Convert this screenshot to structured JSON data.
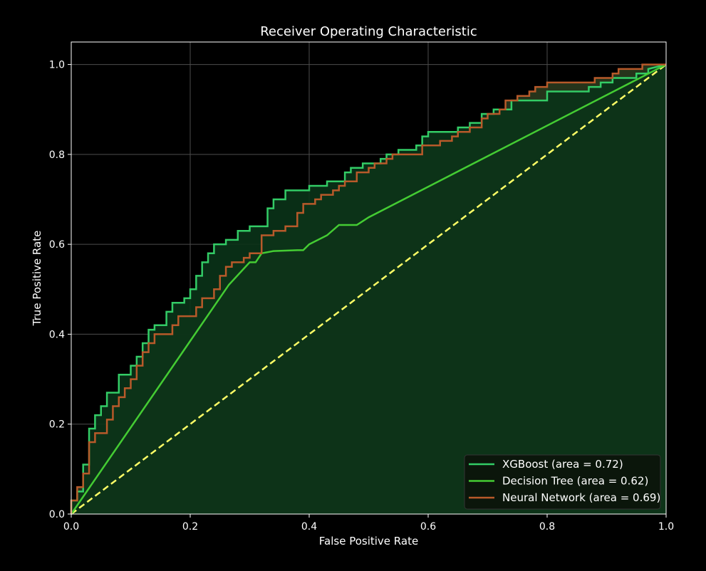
{
  "chart_data": {
    "type": "line",
    "title": "Receiver Operating Characteristic",
    "xlabel": "False Positive Rate",
    "ylabel": "True Positive Rate",
    "xlim": [
      0.0,
      1.0
    ],
    "ylim": [
      0.0,
      1.05
    ],
    "xticks": [
      "0.0",
      "0.2",
      "0.4",
      "0.6",
      "0.8",
      "1.0"
    ],
    "yticks": [
      "0.0",
      "0.2",
      "0.4",
      "0.6",
      "0.8",
      "1.0"
    ],
    "grid": true,
    "legend_position": "lower-right",
    "series": [
      {
        "name": "XGBoost (area = 0.72)",
        "color": "#33cc66",
        "fill": "#0a3318",
        "step": true,
        "points": [
          [
            0.0,
            0.0
          ],
          [
            0.0,
            0.03
          ],
          [
            0.01,
            0.03
          ],
          [
            0.01,
            0.05
          ],
          [
            0.02,
            0.05
          ],
          [
            0.02,
            0.11
          ],
          [
            0.03,
            0.11
          ],
          [
            0.03,
            0.19
          ],
          [
            0.04,
            0.19
          ],
          [
            0.04,
            0.22
          ],
          [
            0.05,
            0.22
          ],
          [
            0.05,
            0.24
          ],
          [
            0.06,
            0.24
          ],
          [
            0.06,
            0.27
          ],
          [
            0.08,
            0.27
          ],
          [
            0.08,
            0.31
          ],
          [
            0.1,
            0.31
          ],
          [
            0.1,
            0.33
          ],
          [
            0.11,
            0.33
          ],
          [
            0.11,
            0.35
          ],
          [
            0.12,
            0.35
          ],
          [
            0.12,
            0.38
          ],
          [
            0.13,
            0.38
          ],
          [
            0.13,
            0.41
          ],
          [
            0.14,
            0.41
          ],
          [
            0.14,
            0.42
          ],
          [
            0.16,
            0.42
          ],
          [
            0.16,
            0.45
          ],
          [
            0.17,
            0.45
          ],
          [
            0.17,
            0.47
          ],
          [
            0.19,
            0.47
          ],
          [
            0.19,
            0.48
          ],
          [
            0.2,
            0.48
          ],
          [
            0.2,
            0.5
          ],
          [
            0.21,
            0.5
          ],
          [
            0.21,
            0.53
          ],
          [
            0.22,
            0.53
          ],
          [
            0.22,
            0.56
          ],
          [
            0.23,
            0.56
          ],
          [
            0.23,
            0.58
          ],
          [
            0.24,
            0.58
          ],
          [
            0.24,
            0.6
          ],
          [
            0.26,
            0.6
          ],
          [
            0.26,
            0.61
          ],
          [
            0.28,
            0.61
          ],
          [
            0.28,
            0.63
          ],
          [
            0.3,
            0.63
          ],
          [
            0.3,
            0.64
          ],
          [
            0.33,
            0.64
          ],
          [
            0.33,
            0.68
          ],
          [
            0.34,
            0.68
          ],
          [
            0.34,
            0.7
          ],
          [
            0.36,
            0.7
          ],
          [
            0.36,
            0.72
          ],
          [
            0.4,
            0.72
          ],
          [
            0.4,
            0.73
          ],
          [
            0.43,
            0.73
          ],
          [
            0.43,
            0.74
          ],
          [
            0.46,
            0.74
          ],
          [
            0.46,
            0.76
          ],
          [
            0.47,
            0.76
          ],
          [
            0.47,
            0.77
          ],
          [
            0.49,
            0.77
          ],
          [
            0.49,
            0.78
          ],
          [
            0.52,
            0.78
          ],
          [
            0.52,
            0.79
          ],
          [
            0.53,
            0.79
          ],
          [
            0.53,
            0.8
          ],
          [
            0.55,
            0.8
          ],
          [
            0.55,
            0.81
          ],
          [
            0.58,
            0.81
          ],
          [
            0.58,
            0.82
          ],
          [
            0.59,
            0.82
          ],
          [
            0.59,
            0.84
          ],
          [
            0.6,
            0.84
          ],
          [
            0.6,
            0.85
          ],
          [
            0.65,
            0.85
          ],
          [
            0.65,
            0.86
          ],
          [
            0.67,
            0.86
          ],
          [
            0.67,
            0.87
          ],
          [
            0.69,
            0.87
          ],
          [
            0.69,
            0.89
          ],
          [
            0.71,
            0.89
          ],
          [
            0.71,
            0.9
          ],
          [
            0.74,
            0.9
          ],
          [
            0.74,
            0.92
          ],
          [
            0.8,
            0.92
          ],
          [
            0.8,
            0.94
          ],
          [
            0.87,
            0.94
          ],
          [
            0.87,
            0.95
          ],
          [
            0.89,
            0.95
          ],
          [
            0.89,
            0.96
          ],
          [
            0.91,
            0.96
          ],
          [
            0.91,
            0.97
          ],
          [
            0.95,
            0.97
          ],
          [
            0.95,
            0.98
          ],
          [
            0.97,
            0.98
          ],
          [
            0.97,
            0.99
          ],
          [
            1.0,
            1.0
          ]
        ]
      },
      {
        "name": "Decision Tree (area = 0.62)",
        "color": "#44cc33",
        "fill": "#2e4d1c",
        "step": false,
        "points": [
          [
            0.0,
            0.0
          ],
          [
            0.265,
            0.51
          ],
          [
            0.3,
            0.56
          ],
          [
            0.31,
            0.56
          ],
          [
            0.32,
            0.58
          ],
          [
            0.34,
            0.585
          ],
          [
            0.38,
            0.587
          ],
          [
            0.39,
            0.587
          ],
          [
            0.4,
            0.6
          ],
          [
            0.43,
            0.62
          ],
          [
            0.45,
            0.643
          ],
          [
            0.48,
            0.643
          ],
          [
            0.5,
            0.66
          ],
          [
            1.0,
            1.0
          ]
        ]
      },
      {
        "name": "Neural Network (area = 0.69)",
        "color": "#b85a2a",
        "fill": "#2a3a1e",
        "step": true,
        "points": [
          [
            0.0,
            0.0
          ],
          [
            0.0,
            0.03
          ],
          [
            0.01,
            0.03
          ],
          [
            0.01,
            0.06
          ],
          [
            0.02,
            0.06
          ],
          [
            0.02,
            0.09
          ],
          [
            0.03,
            0.09
          ],
          [
            0.03,
            0.16
          ],
          [
            0.04,
            0.16
          ],
          [
            0.04,
            0.18
          ],
          [
            0.06,
            0.18
          ],
          [
            0.06,
            0.21
          ],
          [
            0.07,
            0.21
          ],
          [
            0.07,
            0.24
          ],
          [
            0.08,
            0.24
          ],
          [
            0.08,
            0.26
          ],
          [
            0.09,
            0.26
          ],
          [
            0.09,
            0.28
          ],
          [
            0.1,
            0.28
          ],
          [
            0.1,
            0.3
          ],
          [
            0.11,
            0.3
          ],
          [
            0.11,
            0.33
          ],
          [
            0.12,
            0.33
          ],
          [
            0.12,
            0.36
          ],
          [
            0.13,
            0.36
          ],
          [
            0.13,
            0.38
          ],
          [
            0.14,
            0.38
          ],
          [
            0.14,
            0.4
          ],
          [
            0.17,
            0.4
          ],
          [
            0.17,
            0.42
          ],
          [
            0.18,
            0.42
          ],
          [
            0.18,
            0.44
          ],
          [
            0.21,
            0.44
          ],
          [
            0.21,
            0.46
          ],
          [
            0.22,
            0.46
          ],
          [
            0.22,
            0.48
          ],
          [
            0.24,
            0.48
          ],
          [
            0.24,
            0.5
          ],
          [
            0.25,
            0.5
          ],
          [
            0.25,
            0.53
          ],
          [
            0.26,
            0.53
          ],
          [
            0.26,
            0.55
          ],
          [
            0.27,
            0.55
          ],
          [
            0.27,
            0.56
          ],
          [
            0.29,
            0.56
          ],
          [
            0.29,
            0.57
          ],
          [
            0.3,
            0.57
          ],
          [
            0.3,
            0.58
          ],
          [
            0.32,
            0.58
          ],
          [
            0.32,
            0.62
          ],
          [
            0.34,
            0.62
          ],
          [
            0.34,
            0.63
          ],
          [
            0.36,
            0.63
          ],
          [
            0.36,
            0.64
          ],
          [
            0.38,
            0.64
          ],
          [
            0.38,
            0.67
          ],
          [
            0.39,
            0.67
          ],
          [
            0.39,
            0.69
          ],
          [
            0.41,
            0.69
          ],
          [
            0.41,
            0.7
          ],
          [
            0.42,
            0.7
          ],
          [
            0.42,
            0.71
          ],
          [
            0.44,
            0.71
          ],
          [
            0.44,
            0.72
          ],
          [
            0.45,
            0.72
          ],
          [
            0.45,
            0.73
          ],
          [
            0.46,
            0.73
          ],
          [
            0.46,
            0.74
          ],
          [
            0.48,
            0.74
          ],
          [
            0.48,
            0.76
          ],
          [
            0.5,
            0.76
          ],
          [
            0.5,
            0.77
          ],
          [
            0.51,
            0.77
          ],
          [
            0.51,
            0.78
          ],
          [
            0.53,
            0.78
          ],
          [
            0.53,
            0.79
          ],
          [
            0.54,
            0.79
          ],
          [
            0.54,
            0.8
          ],
          [
            0.59,
            0.8
          ],
          [
            0.59,
            0.82
          ],
          [
            0.62,
            0.82
          ],
          [
            0.62,
            0.83
          ],
          [
            0.64,
            0.83
          ],
          [
            0.64,
            0.84
          ],
          [
            0.65,
            0.84
          ],
          [
            0.65,
            0.85
          ],
          [
            0.67,
            0.85
          ],
          [
            0.67,
            0.86
          ],
          [
            0.69,
            0.86
          ],
          [
            0.69,
            0.88
          ],
          [
            0.7,
            0.88
          ],
          [
            0.7,
            0.89
          ],
          [
            0.72,
            0.89
          ],
          [
            0.72,
            0.9
          ],
          [
            0.73,
            0.9
          ],
          [
            0.73,
            0.92
          ],
          [
            0.75,
            0.92
          ],
          [
            0.75,
            0.93
          ],
          [
            0.77,
            0.93
          ],
          [
            0.77,
            0.94
          ],
          [
            0.78,
            0.94
          ],
          [
            0.78,
            0.95
          ],
          [
            0.8,
            0.95
          ],
          [
            0.8,
            0.96
          ],
          [
            0.88,
            0.96
          ],
          [
            0.88,
            0.97
          ],
          [
            0.91,
            0.97
          ],
          [
            0.91,
            0.98
          ],
          [
            0.92,
            0.98
          ],
          [
            0.92,
            0.99
          ],
          [
            0.96,
            0.99
          ],
          [
            0.96,
            1.0
          ],
          [
            1.0,
            1.0
          ]
        ]
      }
    ],
    "reference_line": {
      "points": [
        [
          0.0,
          0.0
        ],
        [
          1.0,
          1.0
        ]
      ],
      "color": "#ffff66",
      "style": "dashed"
    }
  }
}
